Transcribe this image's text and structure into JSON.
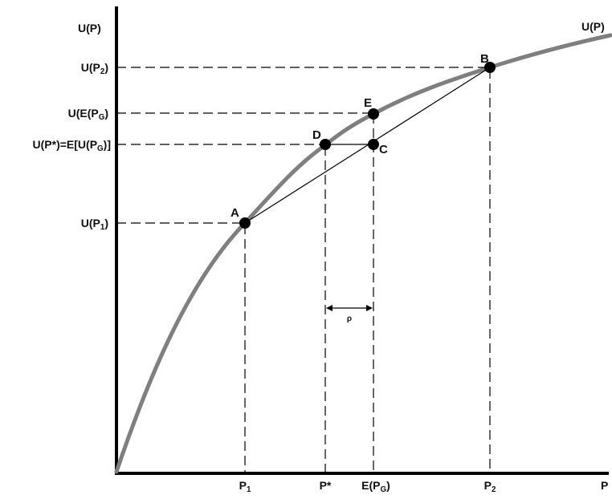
{
  "diagram": {
    "y_axis_label": "U(P)",
    "curve_label": "U(P)",
    "x_axis_label": "P",
    "y_ticks": {
      "u_p2": {
        "main": "U(P",
        "sub": "2",
        "end": ")"
      },
      "u_e_pg": {
        "main": "U(E(P",
        "sub": "G",
        "end": ")"
      },
      "u_pstar": {
        "main": "U(P*)=E[U(P",
        "sub": "G",
        "end": ")]"
      },
      "u_p1": {
        "main": "U(P",
        "sub": "1",
        "end": ")"
      }
    },
    "x_ticks": {
      "p1": {
        "main": "P",
        "sub": "1"
      },
      "pstar": {
        "main": "P*"
      },
      "e_pg": {
        "main": "E(P",
        "sub": "G",
        "end": ")"
      },
      "p2": {
        "main": "P",
        "sub": "2"
      }
    },
    "points": {
      "A": "A",
      "B": "B",
      "C": "C",
      "D": "D",
      "E": "E"
    },
    "gap_label": "ρ",
    "colors": {
      "curve": "#7f7f7f",
      "lines": "#000000"
    }
  }
}
